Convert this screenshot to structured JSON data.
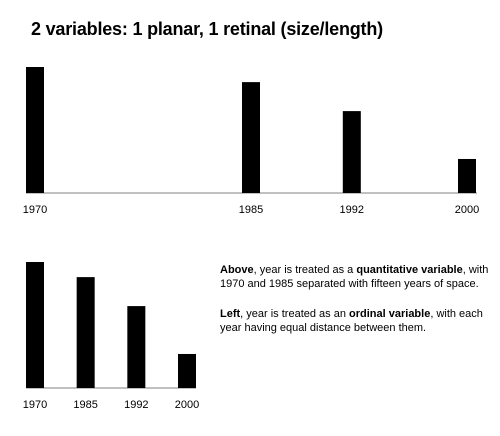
{
  "title": "2 variables: 1 planar, 1 retinal (size/length)",
  "chart_data": [
    {
      "type": "bar",
      "x_scale": "quantitative",
      "categories": [
        "1970",
        "1985",
        "1992",
        "2000"
      ],
      "x": [
        1970,
        1985,
        1992,
        2000
      ],
      "values": [
        100,
        88,
        65,
        27
      ],
      "xlabel": "",
      "ylabel": "",
      "ylim": [
        0,
        100
      ],
      "grid": false
    },
    {
      "type": "bar",
      "x_scale": "ordinal",
      "categories": [
        "1970",
        "1985",
        "1992",
        "2000"
      ],
      "values": [
        100,
        88,
        65,
        27
      ],
      "xlabel": "",
      "ylabel": "",
      "ylim": [
        0,
        100
      ],
      "grid": false
    }
  ],
  "notes": {
    "above": {
      "lead": "Above",
      "text1": ", year is treated as a ",
      "emph": "quantitative variable",
      "text2": ", with 1970 and 1985 separated with fifteen years of space."
    },
    "left": {
      "lead": "Left",
      "text1": ", year is treated as an ",
      "emph": "ordinal variable",
      "text2": ", with each year having equal distance between them."
    }
  },
  "colors": {
    "bar": "#000000",
    "axis": "#9a9a9a",
    "text": "#000000"
  }
}
